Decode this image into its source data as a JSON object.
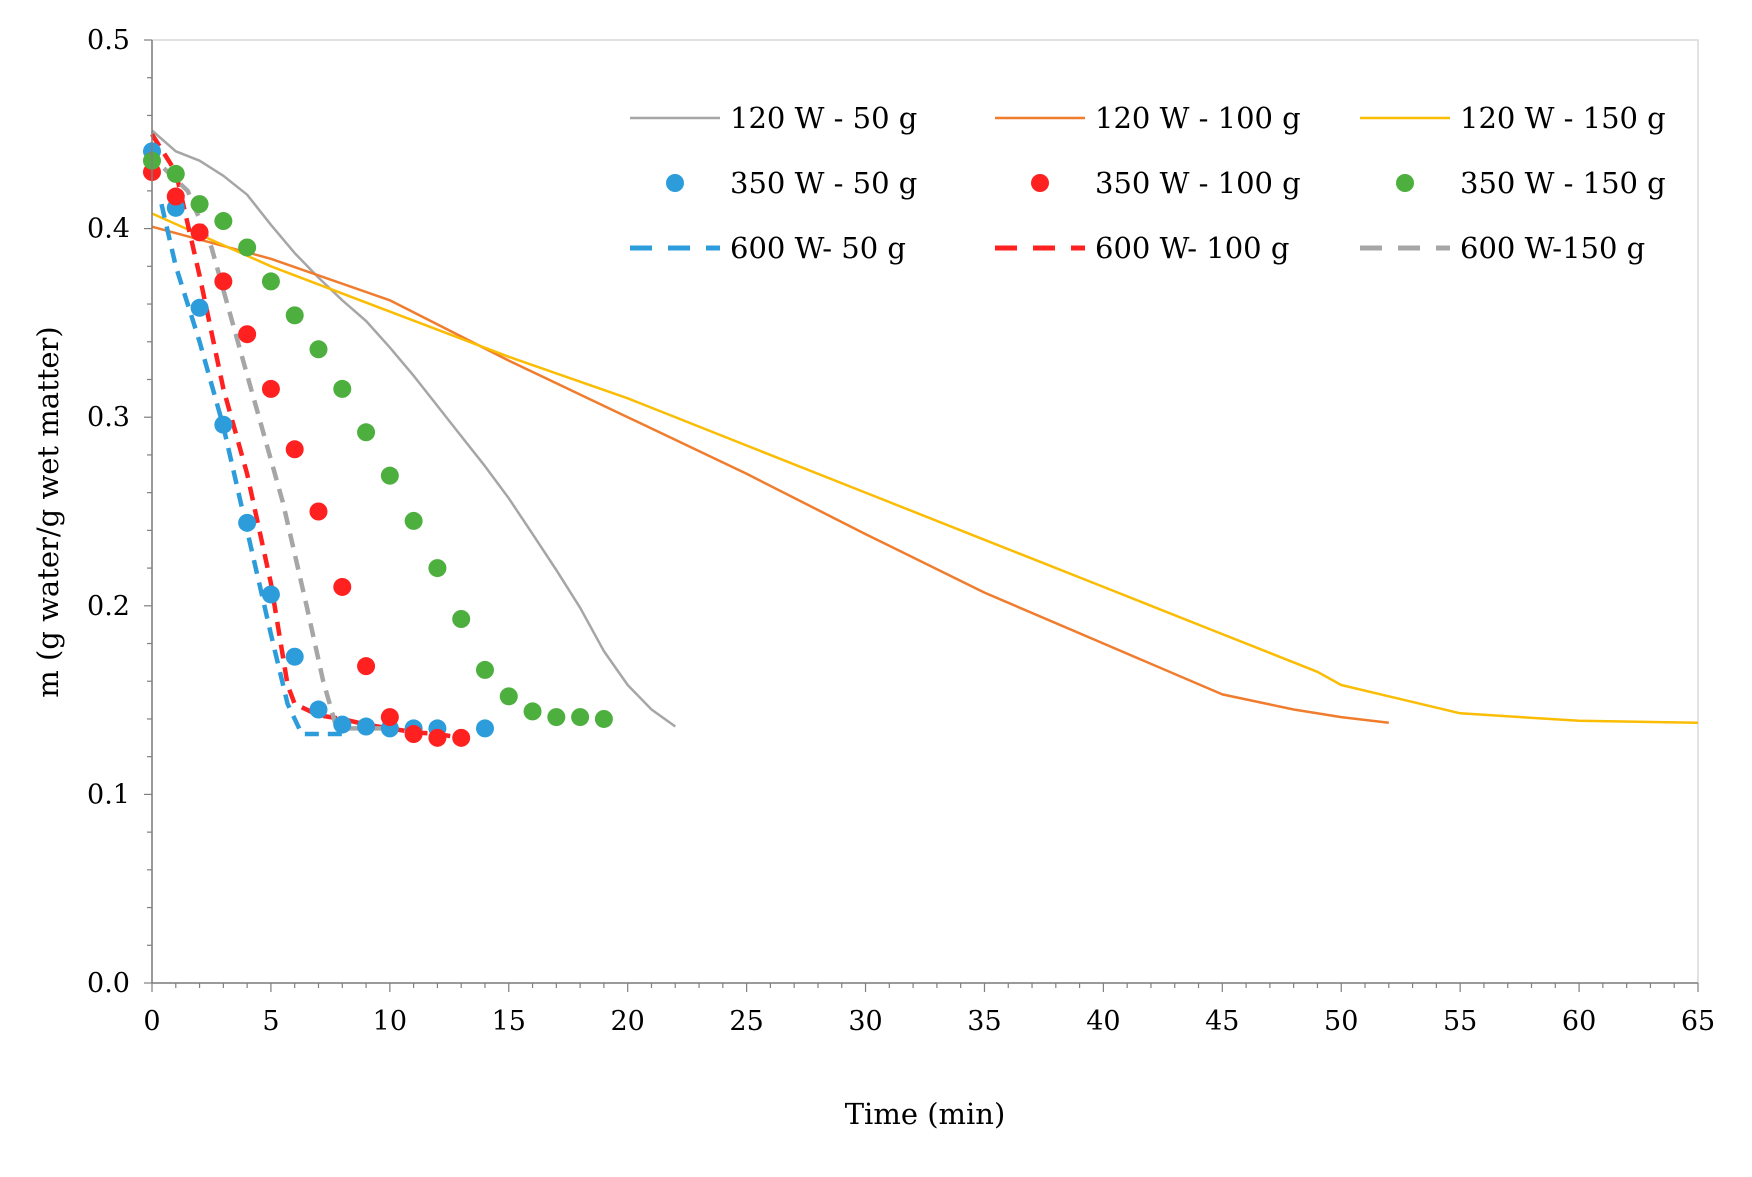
{
  "chart_data": {
    "type": "line",
    "title": "",
    "xlabel": "Time (min)",
    "ylabel": "m (g water/g wet matter)",
    "xlim": [
      0,
      65
    ],
    "ylim": [
      0,
      0.5
    ],
    "x_ticks": [
      "0",
      "5",
      "10",
      "15",
      "20",
      "25",
      "30",
      "35",
      "40",
      "45",
      "50",
      "55",
      "60",
      "65"
    ],
    "y_ticks": [
      "0.0",
      "0.1",
      "0.2",
      "0.3",
      "0.4",
      "0.5"
    ],
    "grid": false,
    "legend_position": "top-right",
    "series": [
      {
        "name": "120 W - 50 g",
        "style": "line",
        "color": "#a6a6a6",
        "x": [
          0,
          1,
          2,
          3,
          4,
          5,
          6,
          7,
          8,
          9,
          10,
          11,
          12,
          13,
          14,
          15,
          16,
          17,
          18,
          19,
          20,
          21,
          22
        ],
        "y": [
          0.452,
          0.441,
          0.436,
          0.428,
          0.418,
          0.402,
          0.387,
          0.374,
          0.362,
          0.351,
          0.337,
          0.322,
          0.306,
          0.29,
          0.274,
          0.257,
          0.238,
          0.219,
          0.199,
          0.176,
          0.158,
          0.145,
          0.136
        ]
      },
      {
        "name": "120 W - 100 g",
        "style": "line",
        "color": "#f07c2e",
        "x": [
          0,
          5,
          10,
          15,
          20,
          25,
          30,
          35,
          40,
          45,
          48,
          50,
          52
        ],
        "y": [
          0.401,
          0.384,
          0.362,
          0.33,
          0.3,
          0.27,
          0.238,
          0.207,
          0.18,
          0.153,
          0.145,
          0.141,
          0.138
        ]
      },
      {
        "name": "120 W - 150 g",
        "style": "line",
        "color": "#fbbc04",
        "x": [
          0,
          5,
          10,
          15,
          20,
          25,
          30,
          35,
          40,
          45,
          49,
          50,
          52,
          55,
          60,
          65
        ],
        "y": [
          0.408,
          0.38,
          0.356,
          0.332,
          0.31,
          0.285,
          0.26,
          0.235,
          0.21,
          0.185,
          0.165,
          0.158,
          0.152,
          0.143,
          0.139,
          0.138
        ]
      },
      {
        "name": "350 W - 50 g",
        "style": "marker",
        "color": "#2d9cdb",
        "x": [
          0,
          1,
          2,
          3,
          4,
          5,
          6,
          7,
          8,
          9,
          10,
          11,
          12,
          14
        ],
        "y": [
          0.441,
          0.411,
          0.358,
          0.296,
          0.244,
          0.206,
          0.173,
          0.145,
          0.137,
          0.136,
          0.135,
          0.135,
          0.135,
          0.135
        ]
      },
      {
        "name": "350 W - 100 g",
        "style": "marker",
        "color": "#ff2020",
        "x": [
          0,
          1,
          2,
          3,
          4,
          5,
          6,
          7,
          8,
          9,
          10,
          11,
          12,
          13
        ],
        "y": [
          0.43,
          0.417,
          0.398,
          0.372,
          0.344,
          0.315,
          0.283,
          0.25,
          0.21,
          0.168,
          0.141,
          0.132,
          0.13,
          0.13
        ]
      },
      {
        "name": "350 W - 150 g",
        "style": "marker",
        "color": "#4caf3e",
        "x": [
          0,
          1,
          2,
          3,
          4,
          5,
          6,
          7,
          8,
          9,
          10,
          11,
          12,
          13,
          14,
          15,
          16,
          17,
          18,
          19
        ],
        "y": [
          0.436,
          0.429,
          0.413,
          0.404,
          0.39,
          0.372,
          0.354,
          0.336,
          0.315,
          0.292,
          0.269,
          0.245,
          0.22,
          0.193,
          0.166,
          0.152,
          0.144,
          0.141,
          0.141,
          0.14
        ]
      },
      {
        "name": "600 W- 50 g",
        "style": "dashed",
        "color": "#2d9cdb",
        "x": [
          0.4,
          1,
          2,
          3,
          4,
          5,
          5.7,
          6.3,
          8
        ],
        "y": [
          0.413,
          0.38,
          0.34,
          0.295,
          0.24,
          0.185,
          0.148,
          0.132,
          0.132
        ]
      },
      {
        "name": "600 W- 100 g",
        "style": "dashed",
        "color": "#ff2020",
        "x": [
          0,
          1,
          2,
          3,
          4,
          5,
          5.7,
          6,
          7,
          8,
          9,
          10,
          11,
          12,
          13
        ],
        "y": [
          0.45,
          0.43,
          0.375,
          0.315,
          0.27,
          0.212,
          0.158,
          0.148,
          0.142,
          0.14,
          0.137,
          0.135,
          0.133,
          0.132,
          0.13
        ]
      },
      {
        "name": "600 W-150 g",
        "style": "dashed",
        "color": "#a6a6a6",
        "x": [
          0.5,
          1.5,
          2.5,
          3.5,
          4.5,
          5.5,
          6.5,
          7.2,
          7.7,
          8,
          10
        ],
        "y": [
          0.432,
          0.42,
          0.39,
          0.345,
          0.3,
          0.255,
          0.2,
          0.16,
          0.138,
          0.135,
          0.135
        ]
      }
    ]
  }
}
